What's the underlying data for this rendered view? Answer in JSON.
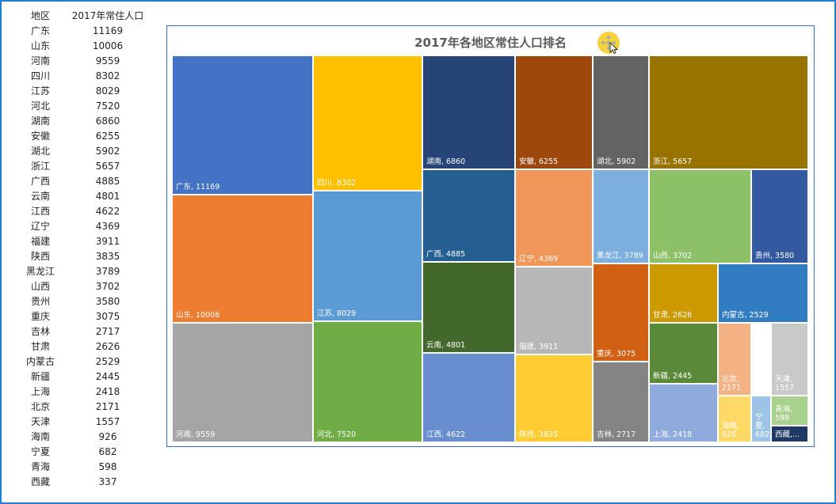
{
  "table": {
    "headers": [
      "地区",
      "2017年常住人口"
    ],
    "rows": [
      [
        "广东",
        "11169"
      ],
      [
        "山东",
        "10006"
      ],
      [
        "河南",
        "9559"
      ],
      [
        "四川",
        "8302"
      ],
      [
        "江苏",
        "8029"
      ],
      [
        "河北",
        "7520"
      ],
      [
        "湖南",
        "6860"
      ],
      [
        "安徽",
        "6255"
      ],
      [
        "湖北",
        "5902"
      ],
      [
        "浙江",
        "5657"
      ],
      [
        "广西",
        "4885"
      ],
      [
        "云南",
        "4801"
      ],
      [
        "江西",
        "4622"
      ],
      [
        "辽宁",
        "4369"
      ],
      [
        "福建",
        "3911"
      ],
      [
        "陕西",
        "3835"
      ],
      [
        "黑龙江",
        "3789"
      ],
      [
        "山西",
        "3702"
      ],
      [
        "贵州",
        "3580"
      ],
      [
        "重庆",
        "3075"
      ],
      [
        "吉林",
        "2717"
      ],
      [
        "甘肃",
        "2626"
      ],
      [
        "内蒙古",
        "2529"
      ],
      [
        "新疆",
        "2445"
      ],
      [
        "上海",
        "2418"
      ],
      [
        "北京",
        "2171"
      ],
      [
        "天津",
        "1557"
      ],
      [
        "海南",
        "926"
      ],
      [
        "宁夏",
        "682"
      ],
      [
        "青海",
        "598"
      ],
      [
        "西藏",
        "337"
      ]
    ]
  },
  "chart_data": {
    "type": "treemap",
    "title": "2017年各地区常住人口排名",
    "items": [
      {
        "name": "广东",
        "value": 11169,
        "label": "广东, 11169",
        "color": "#4472c4"
      },
      {
        "name": "山东",
        "value": 10006,
        "label": "山东, 10006",
        "color": "#ed7d31"
      },
      {
        "name": "河南",
        "value": 9559,
        "label": "河南, 9559",
        "color": "#a5a5a5"
      },
      {
        "name": "四川",
        "value": 8302,
        "label": "四川, 8302",
        "color": "#ffc000"
      },
      {
        "name": "江苏",
        "value": 8029,
        "label": "江苏, 8029",
        "color": "#5b9bd5"
      },
      {
        "name": "河北",
        "value": 7520,
        "label": "河北, 7520",
        "color": "#70ad47"
      },
      {
        "name": "湖南",
        "value": 6860,
        "label": "湖南, 6860",
        "color": "#264478"
      },
      {
        "name": "安徽",
        "value": 6255,
        "label": "安徽, 6255",
        "color": "#9e480e"
      },
      {
        "name": "湖北",
        "value": 5902,
        "label": "湖北, 5902",
        "color": "#636363"
      },
      {
        "name": "浙江",
        "value": 5657,
        "label": "浙江, 5657",
        "color": "#997300"
      },
      {
        "name": "广西",
        "value": 4885,
        "label": "广西, 4885",
        "color": "#255e91"
      },
      {
        "name": "云南",
        "value": 4801,
        "label": "云南, 4801",
        "color": "#43682b"
      },
      {
        "name": "江西",
        "value": 4622,
        "label": "江西, 4622",
        "color": "#698ed0"
      },
      {
        "name": "辽宁",
        "value": 4369,
        "label": "辽宁, 4369",
        "color": "#f1975a"
      },
      {
        "name": "福建",
        "value": 3911,
        "label": "福建, 3911",
        "color": "#b7b7b7"
      },
      {
        "name": "陕西",
        "value": 3835,
        "label": "陕西, 3835",
        "color": "#ffcd33"
      },
      {
        "name": "黑龙江",
        "value": 3789,
        "label": "黑龙江, 3789",
        "color": "#7cafdd"
      },
      {
        "name": "山西",
        "value": 3702,
        "label": "山西, 3702",
        "color": "#8cc168"
      },
      {
        "name": "贵州",
        "value": 3580,
        "label": "贵州, 3580",
        "color": "#335aa1"
      },
      {
        "name": "重庆",
        "value": 3075,
        "label": "重庆, 3075",
        "color": "#d26012"
      },
      {
        "name": "吉林",
        "value": 2717,
        "label": "吉林, 2717",
        "color": "#848484"
      },
      {
        "name": "甘肃",
        "value": 2626,
        "label": "甘肃, 2626",
        "color": "#cc9a00"
      },
      {
        "name": "内蒙古",
        "value": 2529,
        "label": "内蒙古, 2529",
        "color": "#327dc2"
      },
      {
        "name": "新疆",
        "value": 2445,
        "label": "新疆, 2445",
        "color": "#5a8a39"
      },
      {
        "name": "上海",
        "value": 2418,
        "label": "上海, 2418",
        "color": "#8faadc"
      },
      {
        "name": "北京",
        "value": 2171,
        "label": "北京, 2171",
        "color": "#f4b183"
      },
      {
        "name": "天津",
        "value": 1557,
        "label": "天津,\n1557",
        "color": "#c9c9c9"
      },
      {
        "name": "海南",
        "value": 926,
        "label": "海南,\n926",
        "color": "#ffd966"
      },
      {
        "name": "宁夏",
        "value": 682,
        "label": "宁\n夏,\n682",
        "color": "#9dc3e6"
      },
      {
        "name": "青海",
        "value": 598,
        "label": "青海,\n598",
        "color": "#a9d18e"
      },
      {
        "name": "西藏",
        "value": 337,
        "label": "西藏,...",
        "color": "#203864"
      }
    ]
  }
}
